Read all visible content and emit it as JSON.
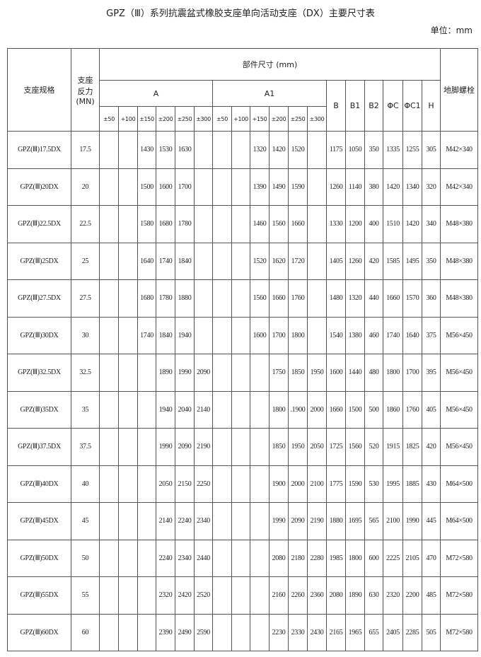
{
  "header": {
    "title": "GPZ（Ⅲ）系列抗震盆式橡胶支座单向活动支座（DX）主要尺寸表",
    "unit": "单位：mm"
  },
  "table": {
    "columns": {
      "spec": "支座规格",
      "force": [
        "支座",
        "反力",
        "(MN)"
      ],
      "group": "部件尺寸 (mm)",
      "a": "A",
      "a1": "A1",
      "a_ranges": [
        "±50",
        "+100",
        "±150",
        "±200",
        "±250",
        "±300"
      ],
      "a1_ranges": [
        "±50",
        "+100",
        "+150",
        "±200",
        "±250",
        "±300"
      ],
      "others": [
        "B",
        "B1",
        "B2",
        "ΦC",
        "ΦC1",
        "H"
      ],
      "bolt": "地脚螺栓"
    },
    "rows": [
      [
        "GPZ(Ⅲ)17.5DX",
        "17.5",
        null,
        null,
        "1430",
        "1530",
        "1630",
        null,
        null,
        null,
        "1320",
        "1420",
        "1520",
        null,
        "1175",
        "1050",
        "350",
        "1335",
        "1255",
        "305",
        "M42×340"
      ],
      [
        "GPZ(Ⅲ)20DX",
        "20",
        null,
        null,
        "1500",
        "1600",
        "1700",
        null,
        null,
        null,
        "1390",
        "1490",
        "1590",
        null,
        "1260",
        "1140",
        "380",
        "1420",
        "1340",
        "320",
        "M42×340"
      ],
      [
        "GPZ(Ⅲ)22.5DX",
        "22.5",
        null,
        null,
        "1580",
        "1680",
        "1780",
        null,
        null,
        null,
        "1460",
        "1560",
        "1660",
        null,
        "1330",
        "1200",
        "400",
        "1510",
        "1420",
        "340",
        "M48×380"
      ],
      [
        "GPZ(Ⅲ)25DX",
        "25",
        null,
        null,
        "1640",
        "1740",
        "1840",
        null,
        null,
        null,
        "1520",
        "1620",
        "1720",
        null,
        "1405",
        "1260",
        "420",
        "1585",
        "1495",
        "350",
        "M48×380"
      ],
      [
        "GPZ(Ⅲ)27.5DX",
        "27.5",
        null,
        null,
        "1680",
        "1780",
        "1880",
        null,
        null,
        null,
        "1560",
        "1660",
        "1760",
        null,
        "1480",
        "1320",
        "440",
        "1660",
        "1570",
        "360",
        "M48×380"
      ],
      [
        "GPZ(Ⅲ)30DX",
        "30",
        null,
        null,
        "1740",
        "1840",
        "1940",
        null,
        null,
        null,
        "1600",
        "1700",
        "1800",
        null,
        "1540",
        "1380",
        "460",
        "1740",
        "1640",
        "375",
        "M56×450"
      ],
      [
        "GPZ(Ⅲ)32.5DX",
        "32.5",
        null,
        null,
        null,
        "1890",
        "1990",
        "2090",
        null,
        null,
        null,
        "1750",
        "1850",
        "1950",
        "1600",
        "1440",
        "480",
        "1800",
        "1700",
        "395",
        "M56×450"
      ],
      [
        "GPZ(Ⅲ)35DX",
        "35",
        null,
        null,
        null,
        "1940",
        "2040",
        "2140",
        null,
        null,
        null,
        "1800",
        ".1900",
        "2000",
        "1660",
        "1500",
        "500",
        "1860",
        "1760",
        "405",
        "M56×450"
      ],
      [
        "GPZ(Ⅲ)37.5DX",
        "37.5",
        null,
        null,
        null,
        "1990",
        "2090",
        "2190",
        null,
        null,
        null,
        "1850",
        "1950",
        "2050",
        "1725",
        "1560",
        "520",
        "1915",
        "1825",
        "420",
        "M56×450"
      ],
      [
        "GPZ(Ⅲ)40DX",
        "40",
        null,
        null,
        null,
        "2050",
        "2150",
        "2250",
        null,
        null,
        null,
        "1900",
        "2000",
        "2100",
        "1775",
        "1590",
        "530",
        "1995",
        "1885",
        "430",
        "M64×500"
      ],
      [
        "GPZ(Ⅲ)45DX",
        "45",
        null,
        null,
        null,
        "2140",
        "2240",
        "2340",
        null,
        null,
        null,
        "1990",
        "2090",
        "2190",
        "1880",
        "1695",
        "565",
        "2100",
        "1990",
        "445",
        "M64×500"
      ],
      [
        "GPZ(Ⅲ)50DX",
        "50",
        null,
        null,
        null,
        "2240",
        "2340",
        "2440",
        null,
        null,
        null,
        "2080",
        "2180",
        "2280",
        "1985",
        "1800",
        "600",
        "2225",
        "2105",
        "470",
        "M72×580"
      ],
      [
        "GPZ(Ⅲ)55DX",
        "55",
        null,
        null,
        null,
        "2320",
        "2420",
        "2520",
        null,
        null,
        null,
        "2160",
        "2260",
        "2360",
        "2080",
        "1890",
        "630",
        "2320",
        "2200",
        "485",
        "M72×580"
      ],
      [
        "GPZ(Ⅲ)60DX",
        "60",
        null,
        null,
        null,
        "2390",
        "2490",
        "2590",
        null,
        null,
        null,
        "2230",
        "2330",
        "2430",
        "2165",
        "1965",
        "655",
        "2405",
        "2285",
        "505",
        "M72×580"
      ]
    ]
  }
}
